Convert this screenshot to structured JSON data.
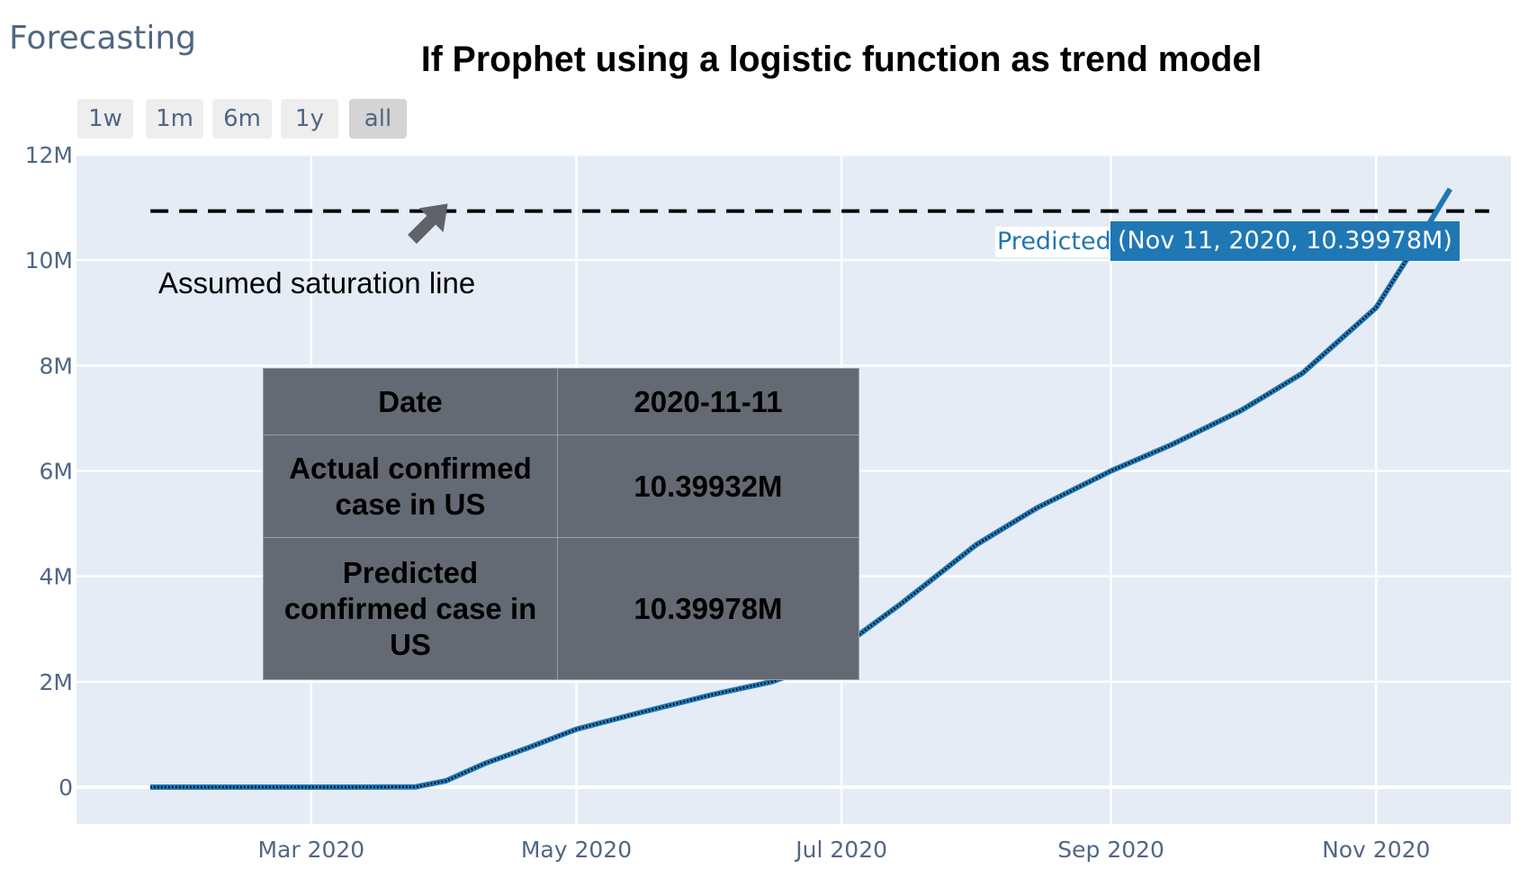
{
  "app_title": "Forecasting",
  "headline": "If Prophet using a logistic function as trend model",
  "range_selector": {
    "buttons": [
      {
        "label": "1w"
      },
      {
        "label": "1m"
      },
      {
        "label": "6m"
      },
      {
        "label": "1y"
      },
      {
        "label": "all",
        "active": true
      }
    ]
  },
  "table": {
    "date_label": "Date",
    "date_value": "2020-11-11",
    "actual_label": "Actual confirmed case in US",
    "actual_value": "10.39932M",
    "predicted_label": "Predicted confirmed case in US",
    "predicted_value": "10.39978M"
  },
  "annotation": "Assumed saturation line",
  "hover": {
    "series": "Predicted",
    "text": "(Nov 11, 2020, 10.39978M)"
  },
  "colors": {
    "plot_bg": "#e5ecf6",
    "predicted": "#1f77b4",
    "actual": "#000000",
    "table_bg": "#646a73",
    "arrow": "#5f6368"
  },
  "chart_data": {
    "type": "line",
    "x_axis": {
      "type": "date",
      "range": [
        "2020-01-07",
        "2020-12-02"
      ],
      "ticks": [
        {
          "date": "2020-03-01",
          "label": "Mar 2020"
        },
        {
          "date": "2020-05-01",
          "label": "May 2020"
        },
        {
          "date": "2020-07-01",
          "label": "Jul 2020"
        },
        {
          "date": "2020-09-01",
          "label": "Sep 2020"
        },
        {
          "date": "2020-11-01",
          "label": "Nov 2020"
        }
      ]
    },
    "y_axis": {
      "range": [
        -700000,
        12000000
      ],
      "ticks": [
        {
          "value": 0,
          "label": "0"
        },
        {
          "value": 2000000,
          "label": "2M"
        },
        {
          "value": 4000000,
          "label": "4M"
        },
        {
          "value": 6000000,
          "label": "6M"
        },
        {
          "value": 8000000,
          "label": "8M"
        },
        {
          "value": 10000000,
          "label": "10M"
        },
        {
          "value": 12000000,
          "label": "12M"
        }
      ]
    },
    "grid": true,
    "saturation_cap": 10930000,
    "saturation_range": [
      "2020-01-24",
      "2020-11-27"
    ],
    "series": [
      {
        "name": "Predicted",
        "style": "line",
        "points": [
          [
            "2020-01-24",
            0
          ],
          [
            "2020-02-15",
            0
          ],
          [
            "2020-03-10",
            0
          ],
          [
            "2020-03-25",
            5000
          ],
          [
            "2020-04-01",
            120000
          ],
          [
            "2020-04-10",
            450000
          ],
          [
            "2020-04-20",
            750000
          ],
          [
            "2020-05-01",
            1100000
          ],
          [
            "2020-05-15",
            1400000
          ],
          [
            "2020-06-01",
            1750000
          ],
          [
            "2020-06-15",
            2000000
          ],
          [
            "2020-06-25",
            2300000
          ],
          [
            "2020-07-01",
            2650000
          ],
          [
            "2020-07-15",
            3500000
          ],
          [
            "2020-08-01",
            4600000
          ],
          [
            "2020-08-15",
            5300000
          ],
          [
            "2020-09-01",
            6000000
          ],
          [
            "2020-09-15",
            6500000
          ],
          [
            "2020-10-01",
            7150000
          ],
          [
            "2020-10-15",
            7850000
          ],
          [
            "2020-11-01",
            9100000
          ],
          [
            "2020-11-11",
            10399780
          ],
          [
            "2020-11-18",
            11350000
          ]
        ]
      },
      {
        "name": "",
        "style": "dotted",
        "points": [
          [
            "2020-01-24",
            0
          ],
          [
            "2020-02-15",
            0
          ],
          [
            "2020-03-10",
            0
          ],
          [
            "2020-03-25",
            5000
          ],
          [
            "2020-04-01",
            120000
          ],
          [
            "2020-04-10",
            450000
          ],
          [
            "2020-04-20",
            750000
          ],
          [
            "2020-05-01",
            1100000
          ],
          [
            "2020-05-15",
            1400000
          ],
          [
            "2020-06-01",
            1750000
          ],
          [
            "2020-06-15",
            2000000
          ],
          [
            "2020-06-25",
            2300000
          ],
          [
            "2020-07-01",
            2650000
          ],
          [
            "2020-07-15",
            3500000
          ],
          [
            "2020-08-01",
            4600000
          ],
          [
            "2020-08-15",
            5300000
          ],
          [
            "2020-09-01",
            6000000
          ],
          [
            "2020-09-15",
            6500000
          ],
          [
            "2020-10-01",
            7150000
          ],
          [
            "2020-10-15",
            7850000
          ],
          [
            "2020-11-01",
            9100000
          ],
          [
            "2020-11-11",
            10399320
          ]
        ]
      }
    ]
  }
}
